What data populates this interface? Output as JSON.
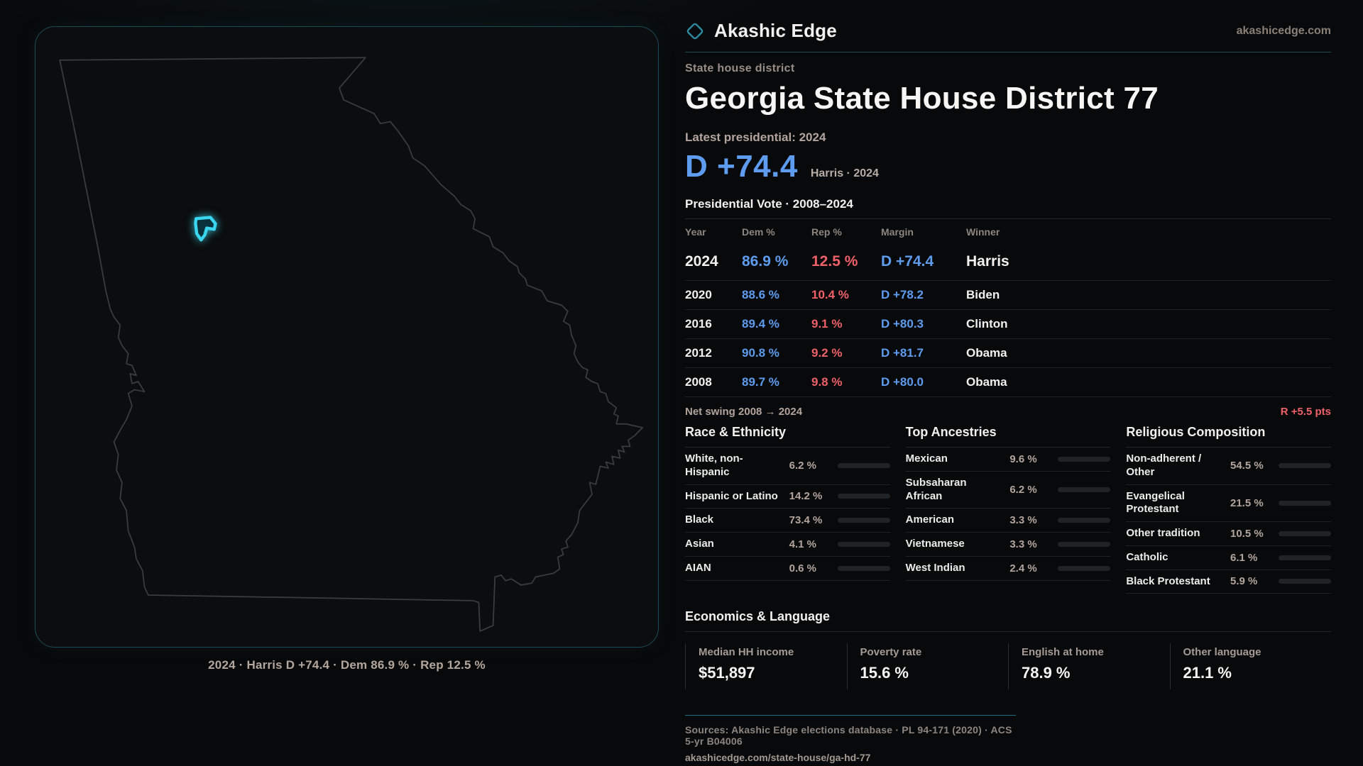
{
  "brand": {
    "name": "Akashic Edge",
    "domain": "akashicedge.com"
  },
  "header": {
    "kicker": "State house district",
    "title": "Georgia State House District 77",
    "latest_label": "Latest presidential: 2024",
    "margin": "D +74.4",
    "margin_detail": "Harris · 2024"
  },
  "map": {
    "caption": "2024 · Harris D +74.4 · Dem 86.9 % · Rep 12.5 %"
  },
  "vote_table": {
    "title": "Presidential Vote · 2008–2024",
    "columns": [
      "Year",
      "Dem %",
      "Rep %",
      "Margin",
      "Winner"
    ],
    "rows": [
      {
        "year": "2024",
        "dem": "86.9 %",
        "rep": "12.5 %",
        "margin": "D +74.4",
        "winner": "Harris"
      },
      {
        "year": "2020",
        "dem": "88.6 %",
        "rep": "10.4 %",
        "margin": "D +78.2",
        "winner": "Biden"
      },
      {
        "year": "2016",
        "dem": "89.4 %",
        "rep": "9.1 %",
        "margin": "D +80.3",
        "winner": "Clinton"
      },
      {
        "year": "2012",
        "dem": "90.8 %",
        "rep": "9.2 %",
        "margin": "D +81.7",
        "winner": "Obama"
      },
      {
        "year": "2008",
        "dem": "89.7 %",
        "rep": "9.8 %",
        "margin": "D +80.0",
        "winner": "Obama"
      }
    ]
  },
  "net_swing": {
    "label": "Net swing 2008 → 2024",
    "value": "R +5.5 pts"
  },
  "demographics": {
    "race": {
      "title": "Race & Ethnicity",
      "rows": [
        {
          "label": "White, non-Hispanic",
          "value": "6.2 %",
          "pct": 6.2,
          "color": "#8fa8d0"
        },
        {
          "label": "Hispanic or Latino",
          "value": "14.2 %",
          "pct": 14.2,
          "color": "#e8a23c"
        },
        {
          "label": "Black",
          "value": "73.4 %",
          "pct": 73.4,
          "color": "#9c86e8"
        },
        {
          "label": "Asian",
          "value": "4.1 %",
          "pct": 4.1,
          "color": "#2fbf8f"
        },
        {
          "label": "AIAN",
          "value": "0.6 %",
          "pct": 0.6,
          "color": "#8a93a5"
        }
      ]
    },
    "ancestries": {
      "title": "Top Ancestries",
      "rows": [
        {
          "label": "Mexican",
          "value": "9.6 %",
          "pct": 9.6,
          "color": "#e8a23c"
        },
        {
          "label": "Subsaharan African",
          "value": "6.2 %",
          "pct": 6.2,
          "color": "#8f7be8"
        },
        {
          "label": "American",
          "value": "3.3 %",
          "pct": 3.3,
          "color": "#8a93a5"
        },
        {
          "label": "Vietnamese",
          "value": "3.3 %",
          "pct": 3.3,
          "color": "#2fbf8f"
        },
        {
          "label": "West Indian",
          "value": "2.4 %",
          "pct": 2.4,
          "color": "#8f7be8"
        }
      ]
    },
    "religion": {
      "title": "Religious Composition",
      "rows": [
        {
          "label": "Non-adherent / Other",
          "value": "54.5 %",
          "pct": 54.5,
          "color": "#6f7f99"
        },
        {
          "label": "Evangelical Protestant",
          "value": "21.5 %",
          "pct": 21.5,
          "color": "#e06c74"
        },
        {
          "label": "Other tradition",
          "value": "10.5 %",
          "pct": 10.5,
          "color": "#9aa3ad"
        },
        {
          "label": "Catholic",
          "value": "6.1 %",
          "pct": 6.1,
          "color": "#e8b23c"
        },
        {
          "label": "Black Protestant",
          "value": "5.9 %",
          "pct": 5.9,
          "color": "#8f7be8"
        }
      ]
    }
  },
  "economics": {
    "title": "Economics & Language",
    "stats": [
      {
        "label": "Median HH income",
        "value": "$51,897"
      },
      {
        "label": "Poverty rate",
        "value": "15.6 %"
      },
      {
        "label": "English at home",
        "value": "78.9 %"
      },
      {
        "label": "Other language",
        "value": "21.1 %"
      }
    ]
  },
  "footer": {
    "sources": "Sources: Akashic Edge elections database · PL 94-171 (2020) · ACS 5-yr B04006",
    "permalink": "akashicedge.com/state-house/ga-hd-77"
  },
  "colors": {
    "dem_blue": "#5e9cf0",
    "rep_red": "#ef6169",
    "accent_teal": "#3ad6f0",
    "panel_border": "#1d4a57"
  }
}
